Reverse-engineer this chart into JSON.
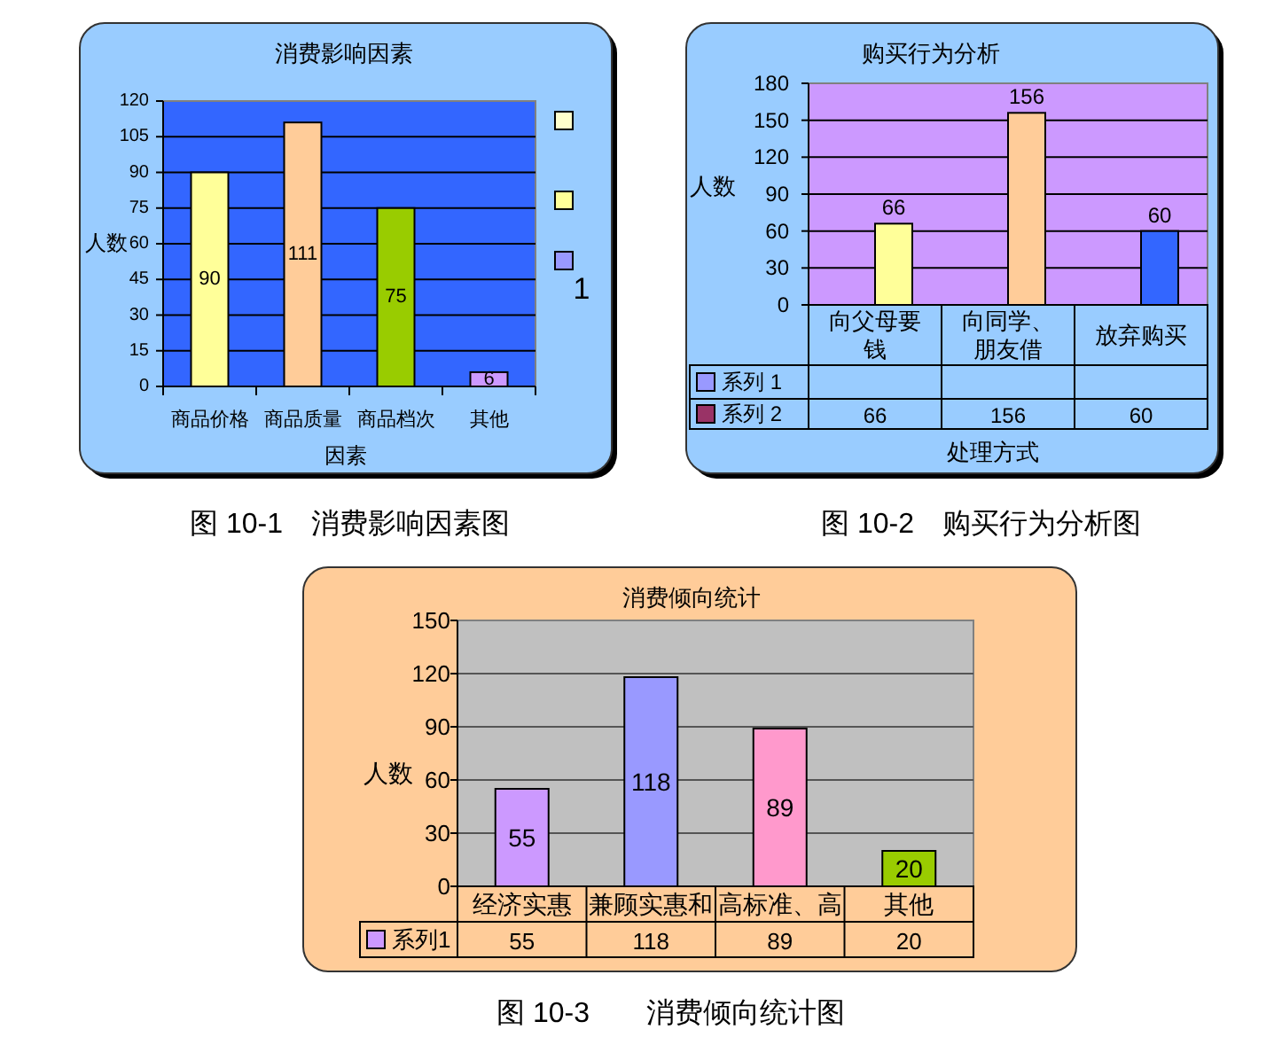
{
  "chart_data": [
    {
      "type": "bar",
      "title": "消费影响因素",
      "xlabel": "因素",
      "ylabel": "人数",
      "categories": [
        "商品价格",
        "商品质量",
        "商品档次",
        "其他"
      ],
      "values": [
        90,
        111,
        75,
        6
      ],
      "colors": [
        "#ffff99",
        "#ffcc99",
        "#99cc00",
        "#cc99ff"
      ],
      "ylim": [
        0,
        120
      ],
      "yticks": [
        0,
        15,
        30,
        45,
        60,
        75,
        90,
        105,
        120
      ],
      "grid": "y",
      "data_labels": true,
      "annotations": [
        "1",
        "图 10-1　消费影响因素图"
      ]
    },
    {
      "type": "bar",
      "title": "购买行为分析",
      "xlabel": "处理方式",
      "ylabel": "人数",
      "categories": [
        "向父母要钱",
        "向同学、朋友借",
        "放弃购买"
      ],
      "series": [
        {
          "name": "系列 1",
          "color": "#9999ff",
          "values": [
            null,
            null,
            null
          ]
        },
        {
          "name": "系列 2",
          "color": "#993366",
          "colors": [
            "#ffff99",
            "#ffcc99",
            "#3366ff"
          ],
          "values": [
            66,
            156,
            60
          ],
          "value_labels": [
            "66",
            "156",
            "60"
          ]
        }
      ],
      "ylim": [
        0,
        180
      ],
      "yticks": [
        0,
        30,
        60,
        90,
        120,
        150,
        180
      ],
      "grid": "y",
      "legend": "bottom",
      "data_labels": true,
      "annotations": [
        "图 10-2　购买行为分析图"
      ]
    },
    {
      "type": "bar",
      "title": "消费倾向统计",
      "ylabel": "人数",
      "categories": [
        "经济实惠",
        "兼顾实惠和",
        "高标准、高",
        "其他"
      ],
      "series": [
        {
          "name": "系列1",
          "color": "#cc99ff",
          "colors": [
            "#cc99ff",
            "#9999ff",
            "#ff99cc",
            "#99cc00"
          ],
          "values": [
            55,
            118,
            89,
            20
          ],
          "value_labels": [
            "55",
            "118",
            "89",
            "20"
          ]
        }
      ],
      "ylim": [
        0,
        150
      ],
      "yticks": [
        0,
        30,
        60,
        90,
        120,
        150
      ],
      "grid": "y",
      "legend": "bottom",
      "data_labels": true,
      "annotations": [
        "图 10-3　　消费倾向统计图"
      ]
    }
  ]
}
